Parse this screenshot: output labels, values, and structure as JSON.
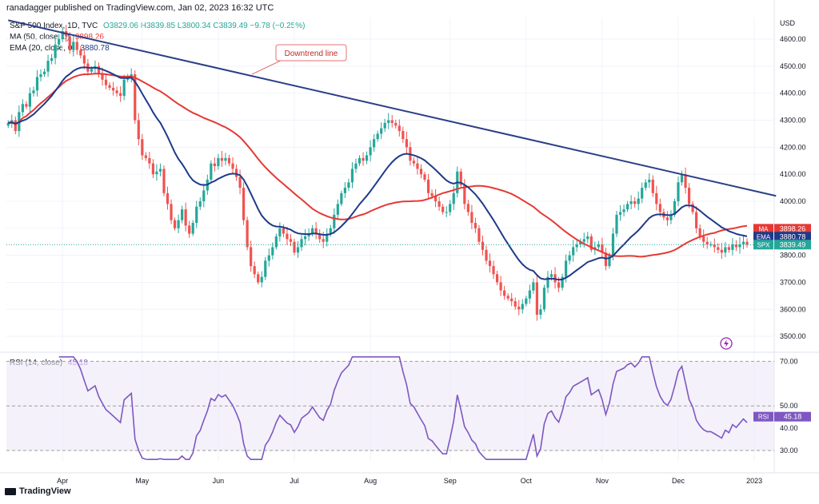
{
  "header": "ranadagger published on TradingView.com, Jan 02, 2023 16:32 UTC",
  "legend": {
    "main": {
      "label": "S&P 500 Index, 1D, TVC",
      "values": "O3829.06  H3839.85  L3800.34  C3839.49  −9.78 (−0.25%)"
    },
    "ma": {
      "label": "MA (50, close, 0)",
      "value": "3898.26"
    },
    "ema": {
      "label": "EMA (20, close, 0)",
      "value": "3880.78"
    },
    "rsi": {
      "label": "RSI (14, close)",
      "value": "45.18"
    }
  },
  "annotation": "Downtrend line",
  "currency": "USD",
  "badges": [
    {
      "tag": "MA",
      "value": "3898.26"
    },
    {
      "tag": "EMA",
      "value": "3880.78"
    },
    {
      "tag": "SPX",
      "value": "3839.49"
    }
  ],
  "rsi_badge": {
    "tag": "RSI",
    "value": "45.18"
  },
  "footer": "TradingView",
  "colors": {
    "up": "#26a69a",
    "down": "#ef5350",
    "ma": "#e53935",
    "ema": "#1e3a8a",
    "trend": "#2a3f86",
    "rsi": "#7e57c2",
    "rsi_band": "#ede7f6"
  },
  "chart_data": [
    {
      "type": "candlestick",
      "title": "S&P 500 Index, 1D, TVC",
      "y_ticks": [
        "4600.00",
        "4500.00",
        "4400.00",
        "4300.00",
        "4200.00",
        "4100.00",
        "4000.00",
        "3900.00",
        "3800.00",
        "3700.00",
        "3600.00",
        "3500.00"
      ],
      "ylim": [
        3450,
        4680
      ],
      "x_ticks": [
        "Apr",
        "May",
        "Jun",
        "Jul",
        "Aug",
        "Sep",
        "Oct",
        "Nov",
        "Dec",
        "2023"
      ],
      "xlim": [
        0,
        212
      ],
      "x_tick_index": [
        15,
        37,
        58,
        79,
        100,
        122,
        143,
        164,
        185,
        206
      ],
      "closes": [
        4290,
        4300,
        4260,
        4330,
        4360,
        4350,
        4400,
        4410,
        4460,
        4470,
        4480,
        4520,
        4530,
        4580,
        4600,
        4630,
        4610,
        4560,
        4590,
        4560,
        4540,
        4510,
        4480,
        4490,
        4500,
        4470,
        4450,
        4430,
        4420,
        4410,
        4400,
        4390,
        4450,
        4460,
        4470,
        4300,
        4230,
        4170,
        4160,
        4140,
        4100,
        4110,
        4120,
        4030,
        3990,
        3930,
        3900,
        3930,
        3970,
        3910,
        3880,
        3920,
        3980,
        4000,
        4040,
        4080,
        4140,
        4130,
        4160,
        4150,
        4160,
        4140,
        4120,
        4090,
        4050,
        3930,
        3830,
        3760,
        3730,
        3700,
        3720,
        3780,
        3800,
        3830,
        3870,
        3900,
        3880,
        3860,
        3850,
        3810,
        3830,
        3860,
        3870,
        3880,
        3900,
        3880,
        3860,
        3850,
        3880,
        3900,
        3950,
        3990,
        4030,
        4050,
        4070,
        4120,
        4140,
        4160,
        4150,
        4170,
        4200,
        4230,
        4250,
        4270,
        4290,
        4300,
        4290,
        4280,
        4260,
        4230,
        4200,
        4150,
        4140,
        4120,
        4100,
        4080,
        4030,
        4020,
        4000,
        3980,
        3960,
        3960,
        3990,
        4030,
        4110,
        4060,
        3990,
        3960,
        3920,
        3900,
        3850,
        3820,
        3780,
        3760,
        3730,
        3700,
        3670,
        3650,
        3640,
        3630,
        3610,
        3600,
        3620,
        3640,
        3670,
        3700,
        3580,
        3600,
        3680,
        3720,
        3730,
        3700,
        3680,
        3720,
        3780,
        3800,
        3830,
        3840,
        3850,
        3860,
        3870,
        3820,
        3830,
        3840,
        3810,
        3760,
        3800,
        3880,
        3950,
        3960,
        3970,
        3990,
        4000,
        3990,
        4010,
        4050,
        4070,
        4080,
        4030,
        3990,
        3960,
        3940,
        3930,
        3950,
        4000,
        4070,
        4100,
        4050,
        3990,
        3960,
        3900,
        3870,
        3850,
        3840,
        3840,
        3830,
        3820,
        3810,
        3830,
        3820,
        3840,
        3830,
        3840,
        3850,
        3839.49
      ],
      "series": [
        {
          "name": "MA (50, close, 0)",
          "last": 3898.26
        },
        {
          "name": "EMA (20, close, 0)",
          "last": 3880.78
        }
      ],
      "trendline": {
        "label": "Downtrend line",
        "from": [
          0,
          4670
        ],
        "to": [
          212,
          4020
        ]
      }
    },
    {
      "type": "line",
      "title": "RSI (14, close)",
      "y_ticks": [
        "70.00",
        "50.00",
        "40.00",
        "30.00"
      ],
      "ylim": [
        25,
        73
      ],
      "band": [
        30,
        70
      ],
      "last": 45.18
    }
  ]
}
